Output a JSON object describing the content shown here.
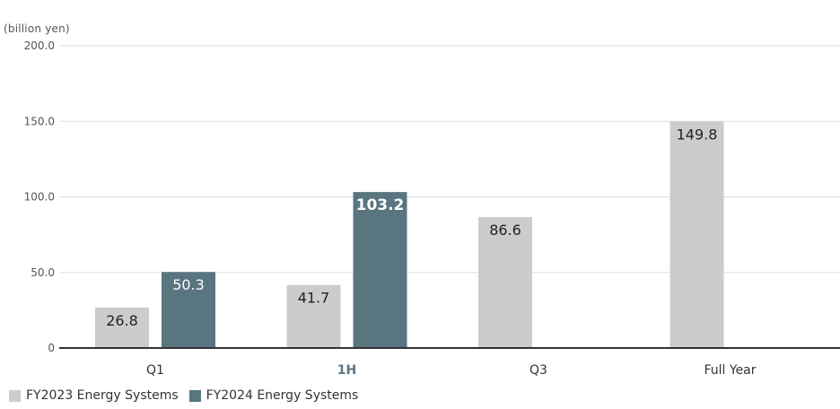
{
  "chart_data": {
    "type": "bar",
    "unit_label": "(billion yen)",
    "categories": [
      "Q1",
      "1H",
      "Q3",
      "Full Year"
    ],
    "highlight_category": "1H",
    "series": [
      {
        "name": "FY2023 Energy Systems",
        "color": "#cccccc",
        "label_color": "#222222",
        "values": [
          26.8,
          41.7,
          86.6,
          149.8
        ],
        "labels": [
          "26.8",
          "41.7",
          "86.6",
          "149.8"
        ]
      },
      {
        "name": "FY2024 Energy Systems",
        "color": "#587580",
        "label_color": "#ffffff",
        "values": [
          50.3,
          103.2,
          null,
          null
        ],
        "labels": [
          "50.3",
          "103.2",
          null,
          null
        ]
      }
    ],
    "yticks": [
      0,
      50,
      100,
      150,
      200
    ],
    "ytick_labels": [
      "0",
      "50.0",
      "100.0",
      "150.0",
      "200.0"
    ],
    "ylim": [
      0,
      200
    ],
    "grid": true,
    "legend_position": "bottom-left",
    "title": "",
    "xlabel": "",
    "ylabel": "(billion yen)"
  },
  "colors": {
    "grid": "#dddddd",
    "axis": "#333333",
    "tick_text": "#555555",
    "category_text": "#333333",
    "highlight_text": "#587580"
  }
}
